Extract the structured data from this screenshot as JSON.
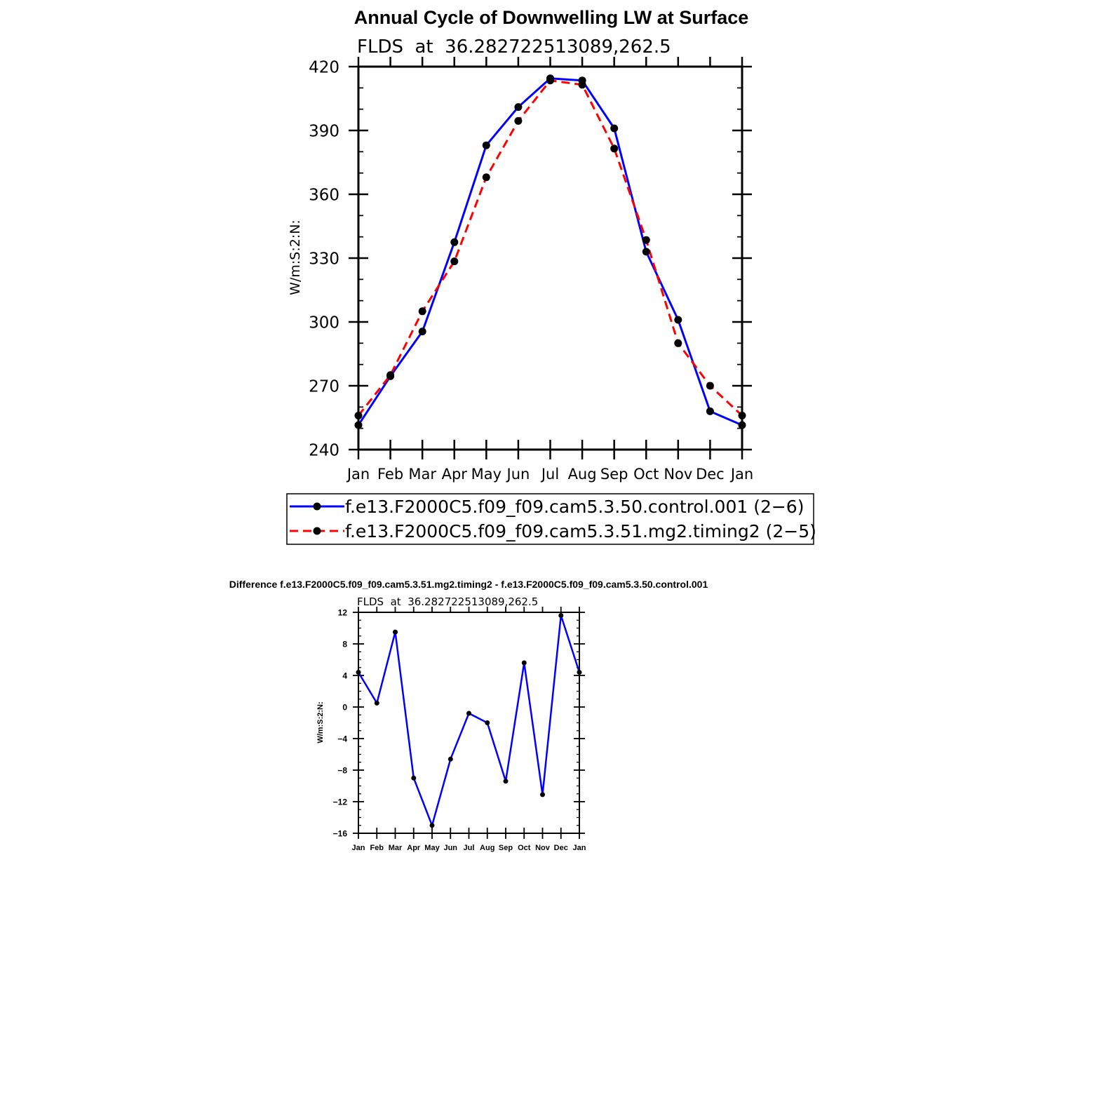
{
  "chart_data": [
    {
      "type": "line",
      "title": "Annual Cycle of Downwelling LW at Surface",
      "subtitle": "FLDS  at  36.282722513089,262.5",
      "xlabel": "",
      "ylabel": "W/m:S:2:N:",
      "ylim": [
        240,
        420
      ],
      "yticks": [
        "240",
        "270",
        "300",
        "330",
        "360",
        "390",
        "420"
      ],
      "categories": [
        "Jan",
        "Feb",
        "Mar",
        "Apr",
        "May",
        "Jun",
        "Jul",
        "Aug",
        "Sep",
        "Oct",
        "Nov",
        "Dec",
        "Jan"
      ],
      "series": [
        {
          "name": "f.e13.F2000C5.f09_f09.cam5.3.50.control.001 (2−6)",
          "color": "#0000ff",
          "dash": "solid",
          "values": [
            251.5,
            274.5,
            295.5,
            337.5,
            383.0,
            401.0,
            414.5,
            413.5,
            391.0,
            333.0,
            301.0,
            258.0,
            251.5
          ]
        },
        {
          "name": "f.e13.F2000C5.f09_f09.cam5.3.51.mg2.timing2 (2−5)",
          "color": "#ff0000",
          "dash": "dashed",
          "values": [
            256.0,
            275.0,
            305.0,
            328.5,
            368.0,
            394.5,
            413.5,
            411.5,
            381.5,
            338.5,
            290.0,
            270.0,
            256.0
          ]
        }
      ],
      "grid": false,
      "legend_position": "below"
    },
    {
      "type": "line",
      "title": "Difference f.e13.F2000C5.f09_f09.cam5.3.51.mg2.timing2 - f.e13.F2000C5.f09_f09.cam5.3.50.control.001",
      "subtitle": "FLDS  at  36.282722513089,262.5",
      "xlabel": "",
      "ylabel": "W/m:S:2:N:",
      "ylim": [
        -16,
        12
      ],
      "yticks": [
        "−16",
        "−12",
        "−8",
        "−4",
        "0",
        "4",
        "8",
        "12"
      ],
      "categories": [
        "Jan",
        "Feb",
        "Mar",
        "Apr",
        "May",
        "Jun",
        "Jul",
        "Aug",
        "Sep",
        "Oct",
        "Nov",
        "Dec",
        "Jan"
      ],
      "series": [
        {
          "color": "#0000ff",
          "values": [
            4.4,
            0.5,
            9.5,
            -9.0,
            -15.0,
            -6.6,
            -0.8,
            -2.0,
            -9.4,
            5.6,
            -11.1,
            11.6,
            4.4
          ]
        }
      ],
      "grid": false
    }
  ]
}
